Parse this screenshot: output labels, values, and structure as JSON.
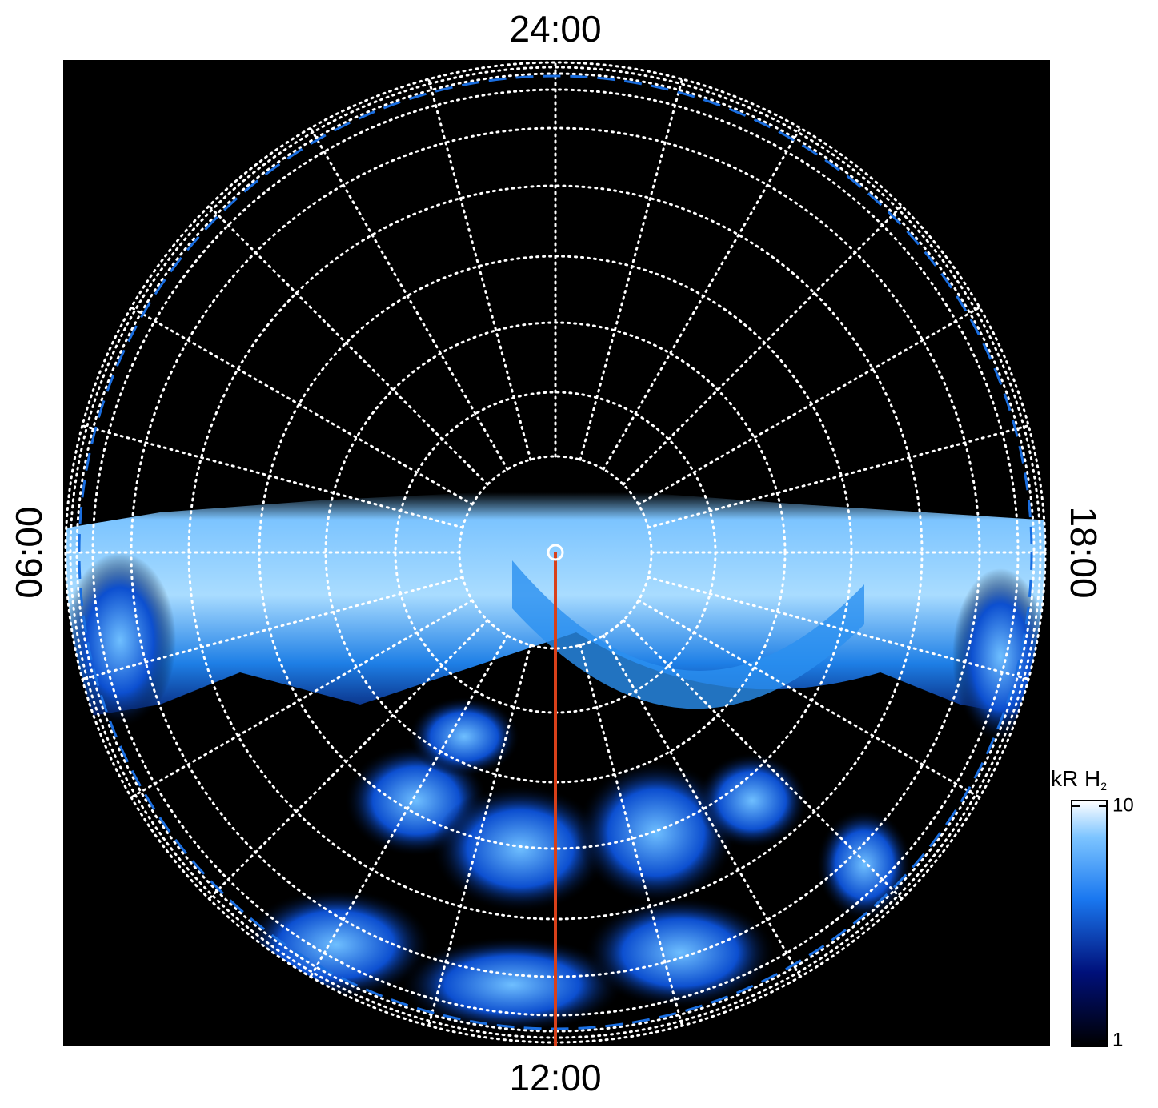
{
  "chart_data": {
    "type": "polar-map",
    "local_time_labels": {
      "top": "24:00",
      "bottom": "12:00",
      "left": "06:00",
      "right": "18:00"
    },
    "colorbar": {
      "label": "kR H",
      "label_subscript": "2",
      "lim": [
        1,
        10
      ],
      "ticks": [
        1,
        10
      ],
      "log": true
    },
    "grid": true
  }
}
